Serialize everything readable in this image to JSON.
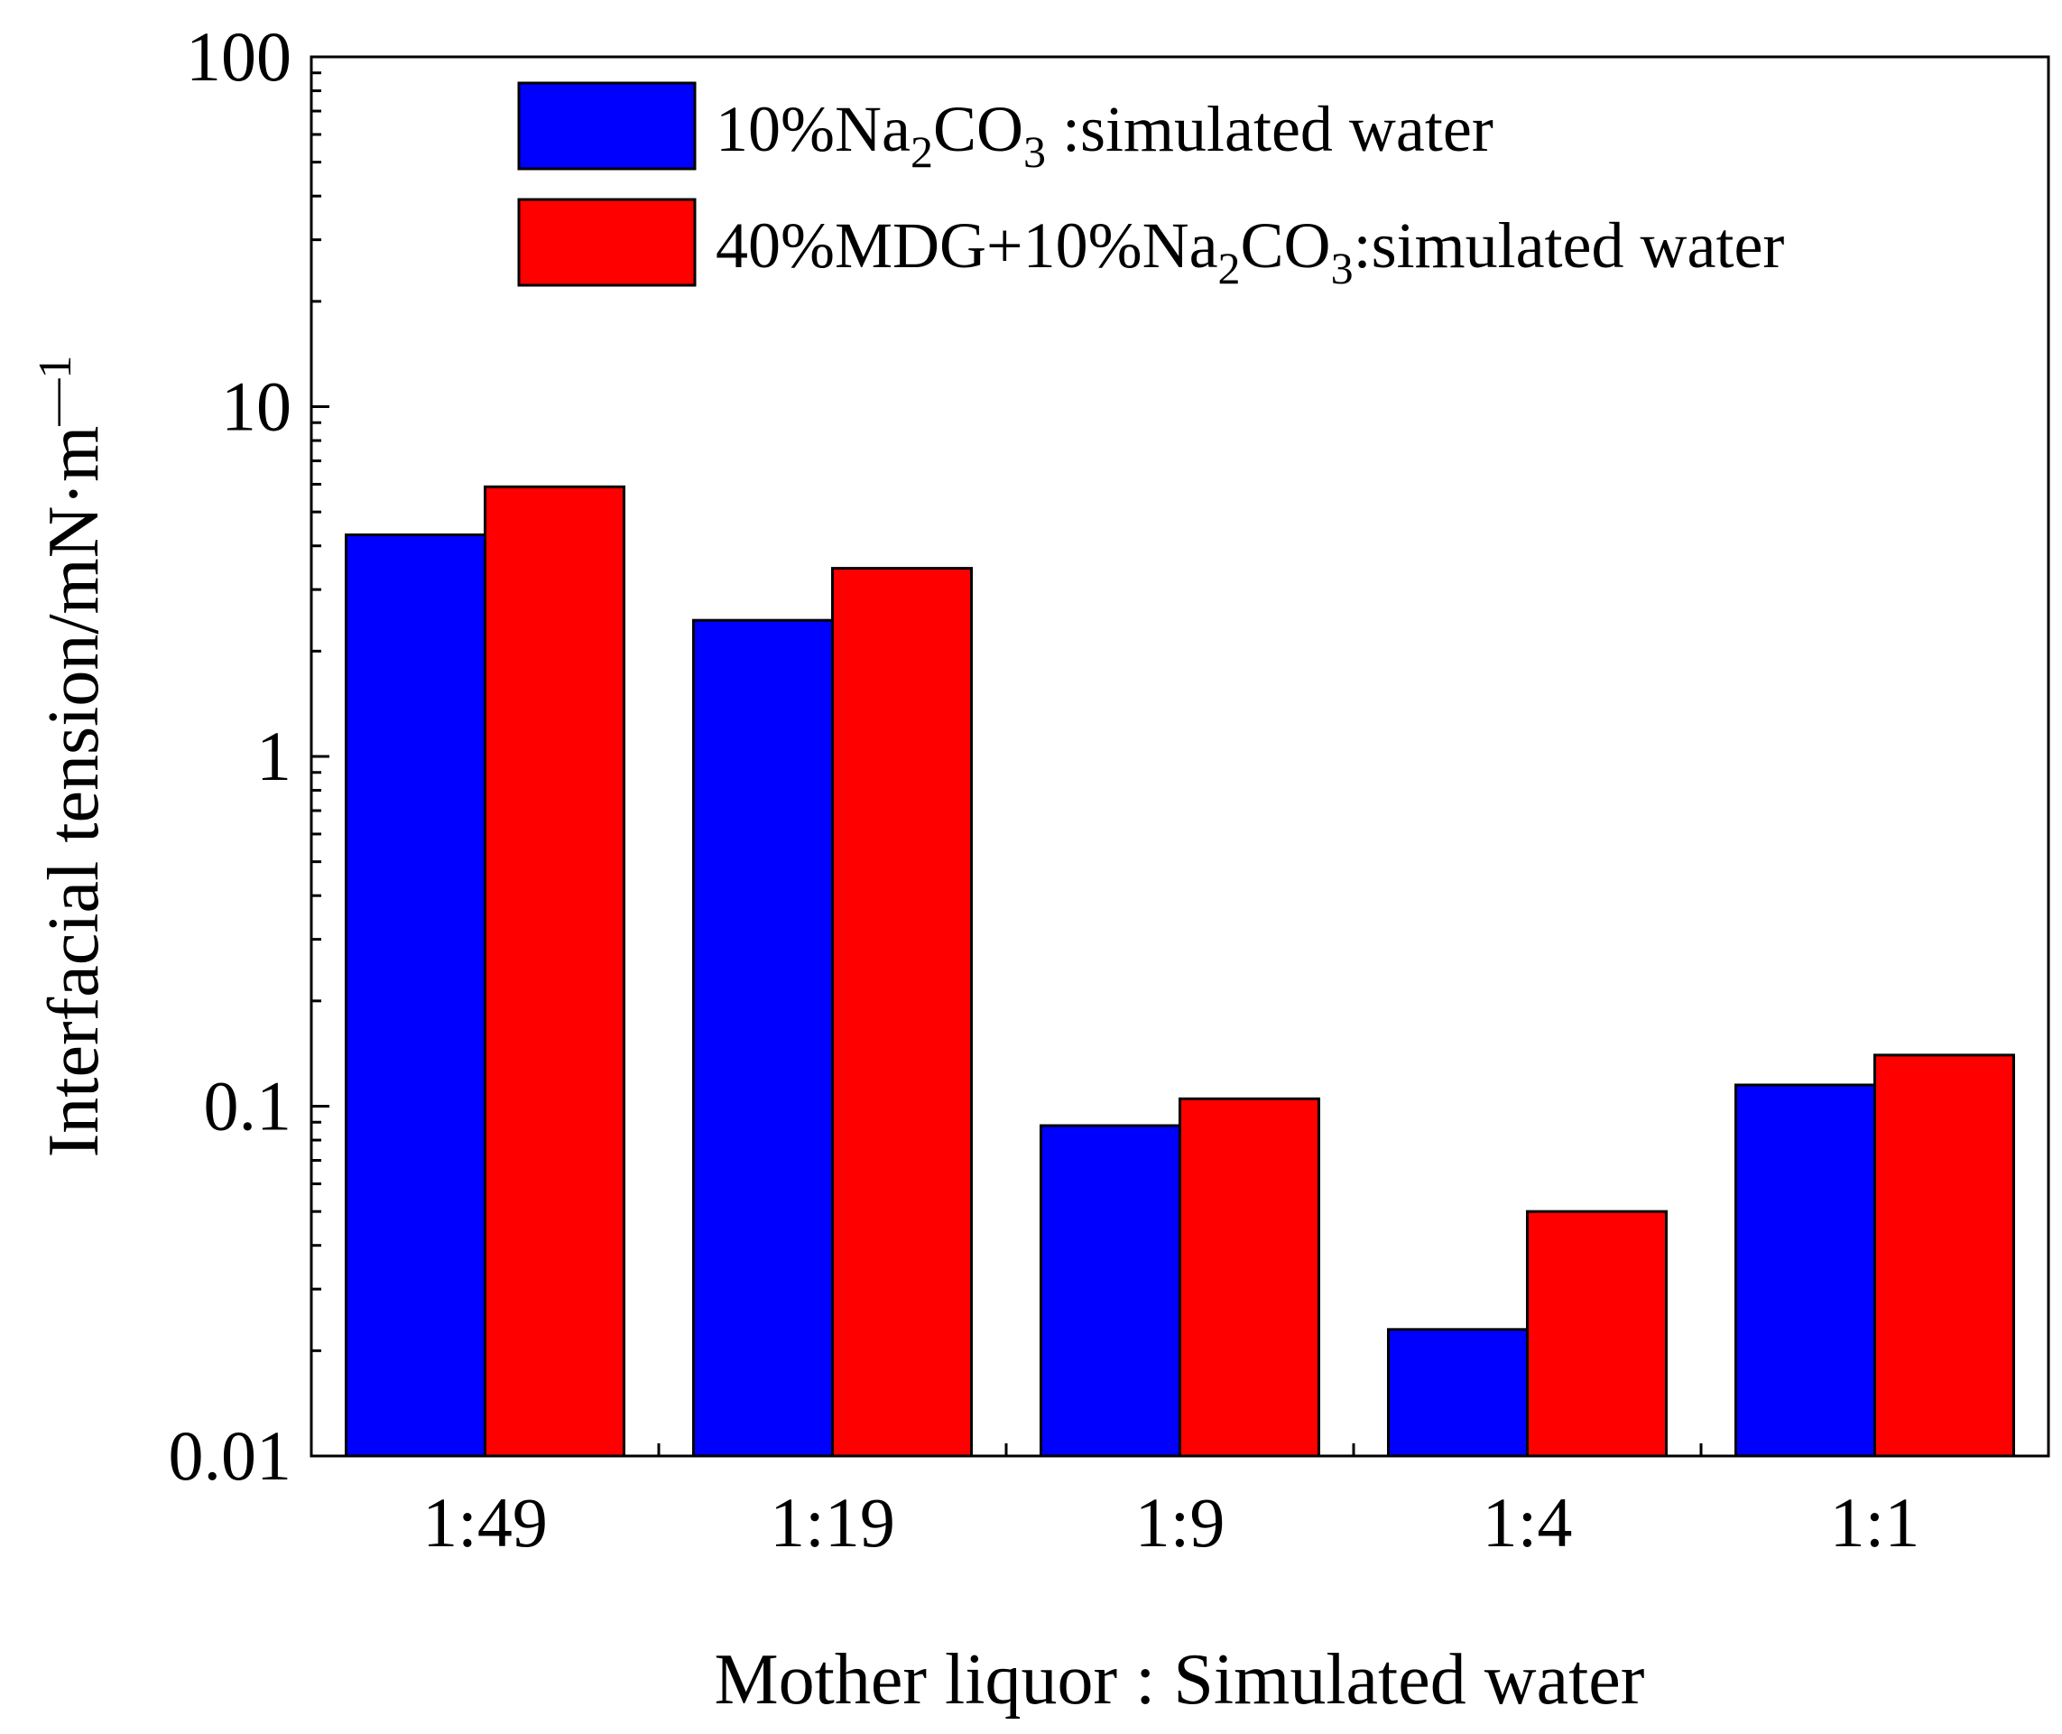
{
  "chart_data": {
    "type": "bar",
    "yscale": "log",
    "categories": [
      "1:49",
      "1:19",
      "1:9",
      "1:4",
      "1:1"
    ],
    "series": [
      {
        "name": "10%Na2CO3 :simulated water",
        "label_parts": [
          {
            "text": "10%Na",
            "sub": false
          },
          {
            "text": "2",
            "sub": true
          },
          {
            "text": "CO",
            "sub": false
          },
          {
            "text": "3",
            "sub": true
          },
          {
            "text": " :simulated water",
            "sub": false
          }
        ],
        "color": "#0000ff",
        "values": [
          4.3,
          2.45,
          0.088,
          0.023,
          0.115
        ]
      },
      {
        "name": "40%MDG+10%Na2CO3:simulated water",
        "label_parts": [
          {
            "text": "40%MDG+10%Na",
            "sub": false
          },
          {
            "text": "2",
            "sub": true
          },
          {
            "text": "CO",
            "sub": false
          },
          {
            "text": "3",
            "sub": true
          },
          {
            "text": ":simulated water",
            "sub": false
          }
        ],
        "color": "#ff0000",
        "values": [
          5.9,
          3.45,
          0.105,
          0.05,
          0.14
        ]
      }
    ],
    "ylim": [
      0.01,
      100
    ],
    "yticks": [
      {
        "value": 0.01,
        "label": "0.01"
      },
      {
        "value": 0.1,
        "label": "0.1"
      },
      {
        "value": 1,
        "label": "1"
      },
      {
        "value": 10,
        "label": "10"
      },
      {
        "value": 100,
        "label": "100"
      }
    ],
    "ylabel": {
      "text": "Interfacial tension/mN·m",
      "superscript": "—1"
    },
    "xlabel": "Mother liquor : Simulated water",
    "legend_position": "top-right",
    "grid": false
  }
}
